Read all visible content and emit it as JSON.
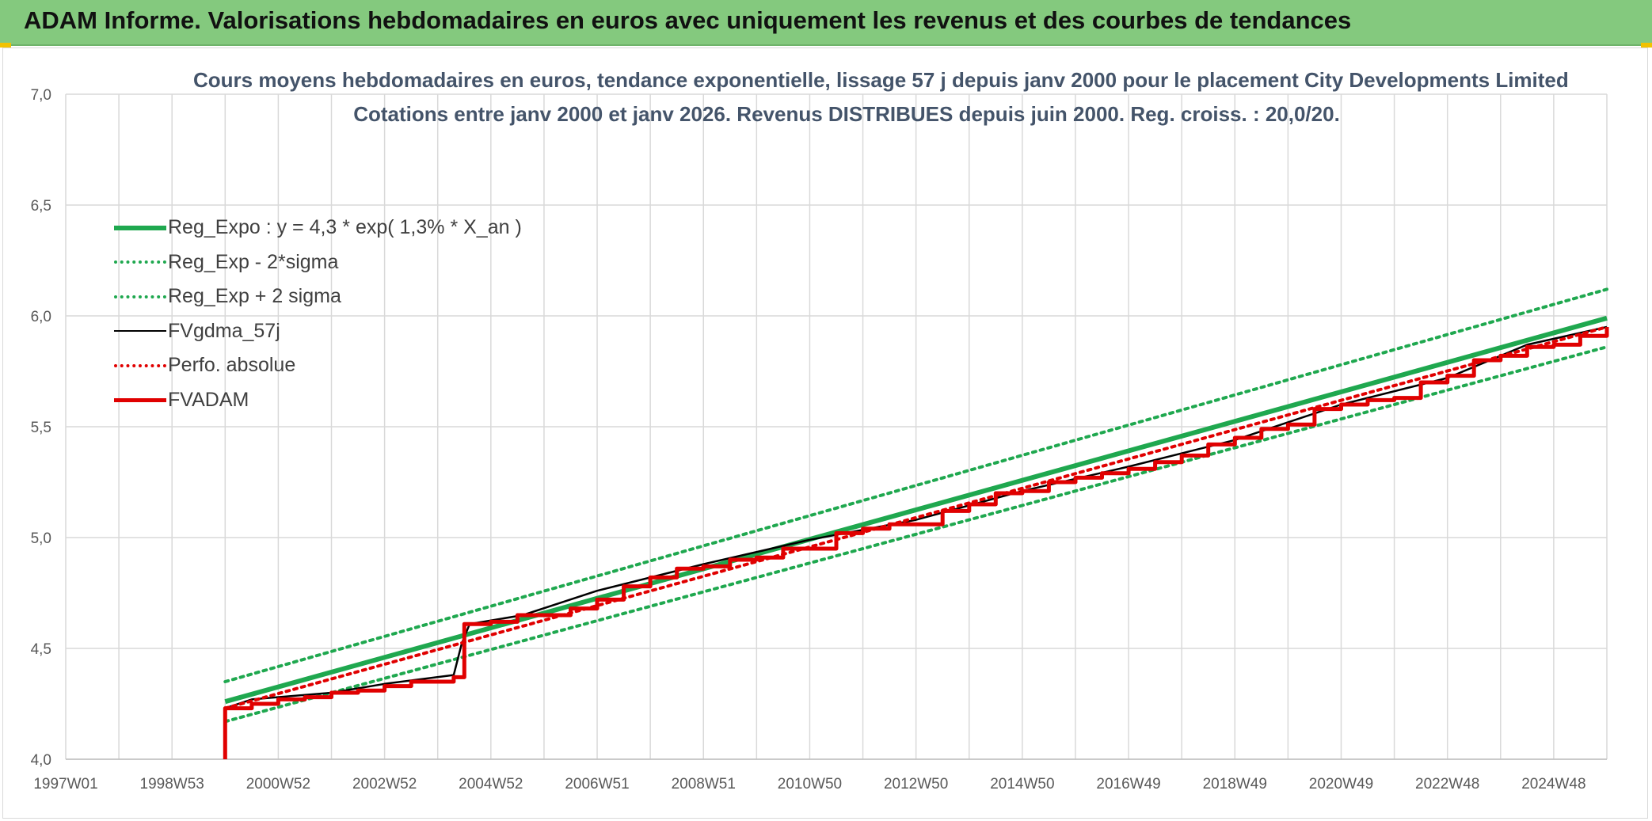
{
  "header": {
    "title": "ADAM Informe. Valorisations hebdomadaires en euros avec uniquement les revenus et des courbes de tendances"
  },
  "chart_data": {
    "type": "line",
    "title_line1": "Cours moyens hebdomadaires en euros, tendance exponentielle, lissage 57 j depuis janv 2000 pour le placement City Developments Limited",
    "title_line2": "Cotations entre janv 2000 et janv 2026. Revenus DISTRIBUES depuis juin 2000. Reg. croiss. : 20,0/20.",
    "xlabel": "",
    "ylabel": "",
    "ylim": [
      4.0,
      7.0
    ],
    "xlim": [
      1997.0,
      2026.0
    ],
    "y_ticks": [
      "4,0",
      "4,5",
      "5,0",
      "5,5",
      "6,0",
      "6,5",
      "7,0"
    ],
    "x_ticks": [
      "1997W01",
      "1998W53",
      "2000W52",
      "2002W52",
      "2004W52",
      "2006W51",
      "2008W51",
      "2010W50",
      "2012W50",
      "2014W50",
      "2016W49",
      "2018W49",
      "2020W49",
      "2022W48",
      "2024W48"
    ],
    "grid": true,
    "legend_position": "top-left",
    "series": [
      {
        "name": "Reg_Expo : y = 4,3 * exp( 1,3% *  X_an )",
        "color": "#1fa84f",
        "style": "solid-thick",
        "x": [
          2000.0,
          2026.0
        ],
        "values": [
          4.26,
          5.99
        ]
      },
      {
        "name": "Reg_Exp - 2*sigma",
        "color": "#1fa84f",
        "style": "dotted",
        "x": [
          2000.0,
          2026.0
        ],
        "values": [
          4.17,
          5.86
        ]
      },
      {
        "name": "Reg_Exp + 2 sigma",
        "color": "#1fa84f",
        "style": "dotted",
        "x": [
          2000.0,
          2026.0
        ],
        "values": [
          4.35,
          6.12
        ]
      },
      {
        "name": "FVgdma_57j",
        "color": "#000000",
        "style": "solid",
        "x": [
          2000.0,
          2000.5,
          2002.0,
          2003.0,
          2004.3,
          2004.45,
          2004.6,
          2005.6,
          2007.0,
          2009.0,
          2011.0,
          2013.0,
          2015.0,
          2017.0,
          2019.0,
          2021.0,
          2023.0,
          2024.5,
          2026.0
        ],
        "values": [
          4.23,
          4.27,
          4.3,
          4.34,
          4.38,
          4.52,
          4.61,
          4.65,
          4.76,
          4.88,
          4.99,
          5.08,
          5.21,
          5.32,
          5.44,
          5.6,
          5.72,
          5.87,
          5.95
        ]
      },
      {
        "name": "Perfo. absolue",
        "color": "#e00000",
        "style": "dotted",
        "x": [
          2000.0,
          2026.0
        ],
        "values": [
          4.23,
          5.95
        ]
      },
      {
        "name": "FVADAM",
        "color": "#e00000",
        "style": "step-thick",
        "x": [
          2000.0,
          2000.0,
          2000.5,
          2001.0,
          2001.5,
          2002.0,
          2002.5,
          2003.0,
          2003.5,
          2004.3,
          2004.5,
          2005.0,
          2005.5,
          2006.0,
          2006.5,
          2007.0,
          2007.5,
          2008.0,
          2008.5,
          2009.0,
          2009.5,
          2010.0,
          2010.5,
          2011.0,
          2011.5,
          2012.0,
          2012.5,
          2013.0,
          2013.5,
          2014.0,
          2014.5,
          2015.0,
          2015.5,
          2016.0,
          2016.5,
          2017.0,
          2017.5,
          2018.0,
          2018.5,
          2019.0,
          2019.5,
          2020.0,
          2020.5,
          2021.0,
          2021.5,
          2022.0,
          2022.5,
          2023.0,
          2023.5,
          2024.0,
          2024.5,
          2025.0,
          2025.5,
          2026.0
        ],
        "values": [
          4.0,
          4.23,
          4.25,
          4.27,
          4.28,
          4.3,
          4.31,
          4.33,
          4.35,
          4.37,
          4.61,
          4.62,
          4.65,
          4.65,
          4.68,
          4.72,
          4.78,
          4.82,
          4.86,
          4.87,
          4.9,
          4.91,
          4.95,
          4.95,
          5.02,
          5.04,
          5.06,
          5.06,
          5.12,
          5.15,
          5.2,
          5.21,
          5.25,
          5.27,
          5.29,
          5.31,
          5.34,
          5.37,
          5.42,
          5.45,
          5.49,
          5.51,
          5.58,
          5.6,
          5.62,
          5.63,
          5.7,
          5.73,
          5.8,
          5.82,
          5.86,
          5.87,
          5.91,
          5.95
        ]
      }
    ]
  },
  "colors": {
    "banner": "#84c97e",
    "grid": "#d9d9d9",
    "axis_text": "#595959",
    "title_text": "#44546a"
  }
}
